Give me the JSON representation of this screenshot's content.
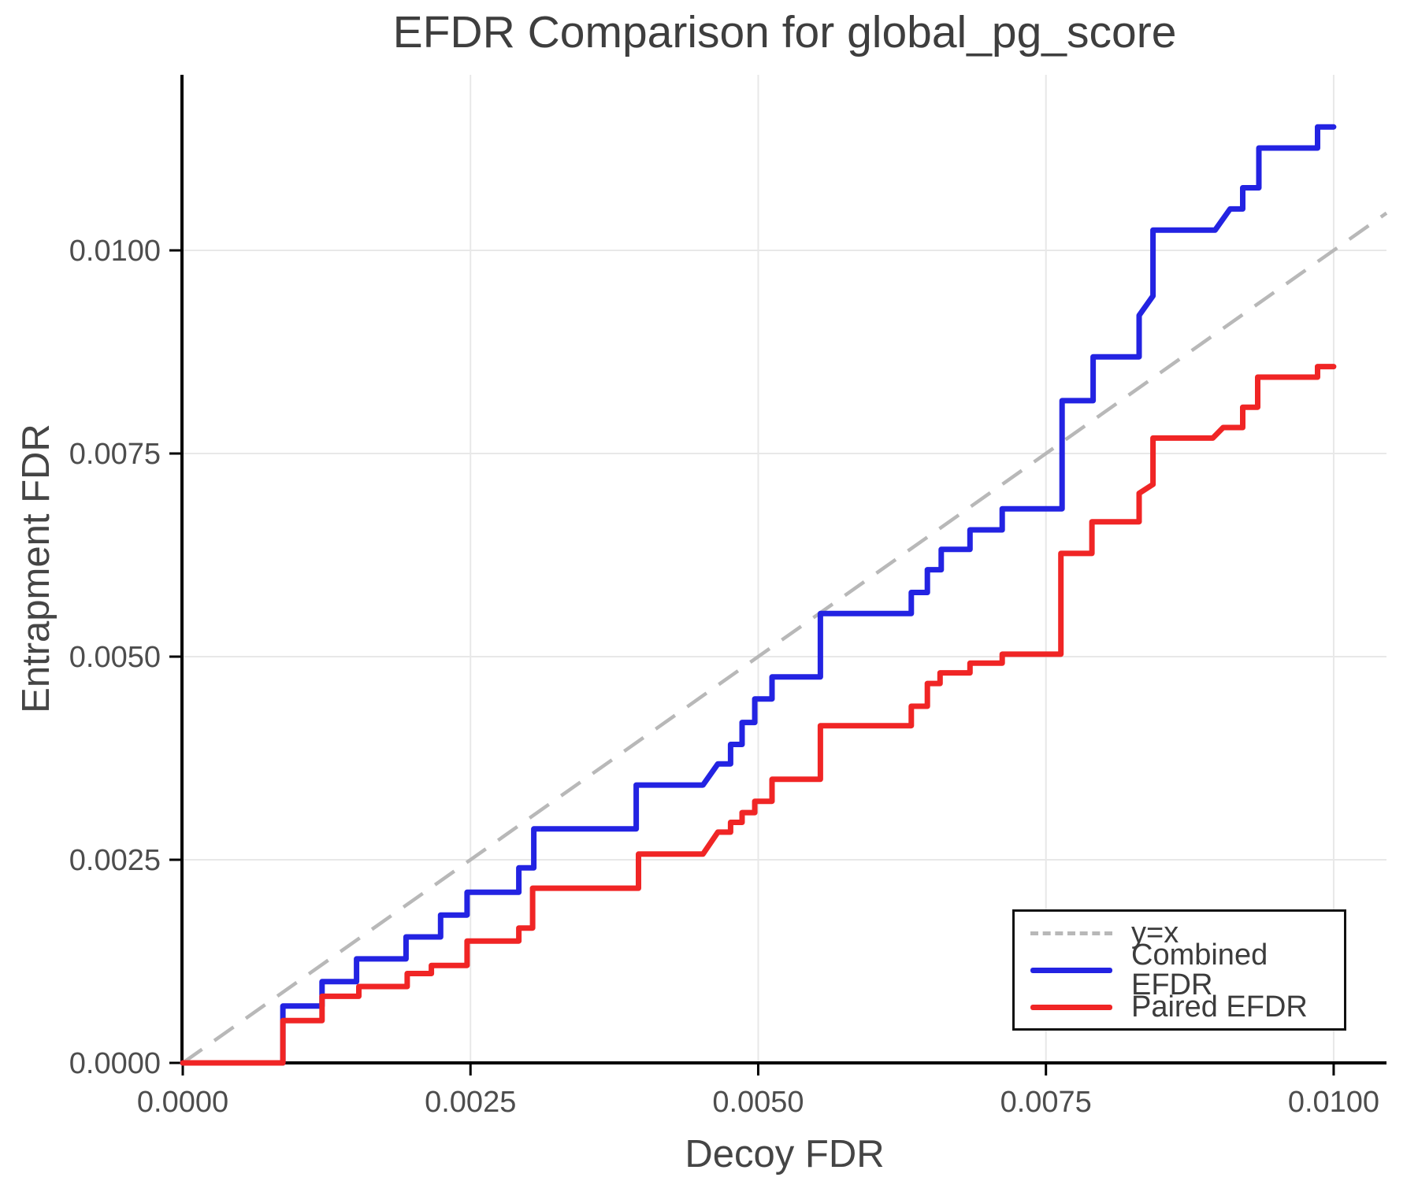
{
  "chart_data": {
    "type": "line",
    "title": "EFDR Comparison for global_pg_score",
    "xlabel": "Decoy FDR",
    "ylabel": "Entrapment FDR",
    "xlim": [
      0,
      0.010459
    ],
    "ylim": [
      0,
      0.012161
    ],
    "grid": true,
    "legend_position": "lower right",
    "x_ticks": {
      "values": [
        0,
        0.0025,
        0.005,
        0.0075,
        0.01
      ],
      "labels": [
        "0.0000",
        "0.0025",
        "0.0050",
        "0.0075",
        "0.0100"
      ]
    },
    "y_ticks": {
      "values": [
        0,
        0.0025,
        0.005,
        0.0075,
        0.01
      ],
      "labels": [
        "0.0000",
        "0.0025",
        "0.0050",
        "0.0075",
        "0.0100"
      ]
    },
    "legend": [
      {
        "label": "y=x",
        "style": "dashed",
        "color": "#b8b8b8"
      },
      {
        "label": "Combined EFDR",
        "style": "solid",
        "color": "#2323e2"
      },
      {
        "label": "Paired EFDR",
        "style": "solid",
        "color": "#f02525"
      }
    ],
    "reference_line": {
      "name": "y=x",
      "points": [
        [
          0,
          0
        ],
        [
          0.010459,
          0.010459
        ]
      ],
      "color": "#b8b8b8"
    },
    "series": [
      {
        "name": "Combined EFDR",
        "color": "#2323e2",
        "points": [
          [
            0,
            0
          ],
          [
            0.00087,
            0
          ],
          [
            0.00087,
            0.0007
          ],
          [
            0.00121,
            0.0007
          ],
          [
            0.00121,
            0.001
          ],
          [
            0.00151,
            0.001
          ],
          [
            0.00151,
            0.00128
          ],
          [
            0.00194,
            0.00128
          ],
          [
            0.00194,
            0.00155
          ],
          [
            0.00224,
            0.00155
          ],
          [
            0.00224,
            0.00182
          ],
          [
            0.00247,
            0.00182
          ],
          [
            0.00247,
            0.0021
          ],
          [
            0.00292,
            0.0021
          ],
          [
            0.00292,
            0.0024
          ],
          [
            0.00305,
            0.0024
          ],
          [
            0.00305,
            0.00288
          ],
          [
            0.00394,
            0.00288
          ],
          [
            0.00394,
            0.00342
          ],
          [
            0.00452,
            0.00342
          ],
          [
            0.00465,
            0.00368
          ],
          [
            0.00476,
            0.00368
          ],
          [
            0.00476,
            0.00392
          ],
          [
            0.00486,
            0.00392
          ],
          [
            0.00486,
            0.00419
          ],
          [
            0.00497,
            0.00419
          ],
          [
            0.00497,
            0.00448
          ],
          [
            0.00512,
            0.00448
          ],
          [
            0.00512,
            0.00475
          ],
          [
            0.00554,
            0.00475
          ],
          [
            0.00554,
            0.00553
          ],
          [
            0.00633,
            0.00553
          ],
          [
            0.00633,
            0.00579
          ],
          [
            0.00647,
            0.00579
          ],
          [
            0.00647,
            0.00607
          ],
          [
            0.00659,
            0.00607
          ],
          [
            0.00659,
            0.00632
          ],
          [
            0.00684,
            0.00632
          ],
          [
            0.00684,
            0.00656
          ],
          [
            0.00712,
            0.00656
          ],
          [
            0.00712,
            0.00682
          ],
          [
            0.00764,
            0.00682
          ],
          [
            0.00764,
            0.00815
          ],
          [
            0.00791,
            0.00815
          ],
          [
            0.00791,
            0.00869
          ],
          [
            0.00831,
            0.00869
          ],
          [
            0.00831,
            0.0092
          ],
          [
            0.00843,
            0.00944
          ],
          [
            0.00843,
            0.01025
          ],
          [
            0.00897,
            0.01025
          ],
          [
            0.0091,
            0.01051
          ],
          [
            0.00921,
            0.01051
          ],
          [
            0.00921,
            0.01077
          ],
          [
            0.00935,
            0.01077
          ],
          [
            0.00935,
            0.01126
          ],
          [
            0.00986,
            0.01126
          ],
          [
            0.00986,
            0.01152
          ],
          [
            0.01,
            0.01152
          ]
        ]
      },
      {
        "name": "Paired EFDR",
        "color": "#f02525",
        "points": [
          [
            0,
            0
          ],
          [
            0.00087,
            0
          ],
          [
            0.00087,
            0.00052
          ],
          [
            0.00121,
            0.00052
          ],
          [
            0.00121,
            0.00082
          ],
          [
            0.00153,
            0.00082
          ],
          [
            0.00153,
            0.00094
          ],
          [
            0.00195,
            0.00094
          ],
          [
            0.00195,
            0.0011
          ],
          [
            0.00216,
            0.0011
          ],
          [
            0.00216,
            0.0012
          ],
          [
            0.00247,
            0.0012
          ],
          [
            0.00247,
            0.0015
          ],
          [
            0.00292,
            0.0015
          ],
          [
            0.00292,
            0.00166
          ],
          [
            0.00304,
            0.00166
          ],
          [
            0.00304,
            0.00215
          ],
          [
            0.00396,
            0.00215
          ],
          [
            0.00396,
            0.00257
          ],
          [
            0.00452,
            0.00257
          ],
          [
            0.00465,
            0.00284
          ],
          [
            0.00476,
            0.00284
          ],
          [
            0.00476,
            0.00296
          ],
          [
            0.00486,
            0.00296
          ],
          [
            0.00486,
            0.00308
          ],
          [
            0.00497,
            0.00308
          ],
          [
            0.00497,
            0.00322
          ],
          [
            0.00512,
            0.00322
          ],
          [
            0.00512,
            0.00349
          ],
          [
            0.00554,
            0.00349
          ],
          [
            0.00554,
            0.00415
          ],
          [
            0.00633,
            0.00415
          ],
          [
            0.00633,
            0.00439
          ],
          [
            0.00647,
            0.00439
          ],
          [
            0.00647,
            0.00467
          ],
          [
            0.00658,
            0.00467
          ],
          [
            0.00658,
            0.0048
          ],
          [
            0.00684,
            0.0048
          ],
          [
            0.00684,
            0.00492
          ],
          [
            0.00712,
            0.00492
          ],
          [
            0.00712,
            0.00503
          ],
          [
            0.00763,
            0.00503
          ],
          [
            0.00763,
            0.00627
          ],
          [
            0.0079,
            0.00627
          ],
          [
            0.0079,
            0.00666
          ],
          [
            0.00831,
            0.00666
          ],
          [
            0.00831,
            0.00701
          ],
          [
            0.00843,
            0.00712
          ],
          [
            0.00843,
            0.00769
          ],
          [
            0.00895,
            0.00769
          ],
          [
            0.00904,
            0.00782
          ],
          [
            0.00921,
            0.00782
          ],
          [
            0.00921,
            0.00807
          ],
          [
            0.00934,
            0.00807
          ],
          [
            0.00934,
            0.00844
          ],
          [
            0.00986,
            0.00844
          ],
          [
            0.00986,
            0.00857
          ],
          [
            0.01,
            0.00857
          ]
        ]
      }
    ],
    "colors": {
      "grid": "#e8e8e8",
      "spine": "#000000",
      "tick_text": "#4d4d4d",
      "title_text": "#3e3e3e"
    }
  }
}
